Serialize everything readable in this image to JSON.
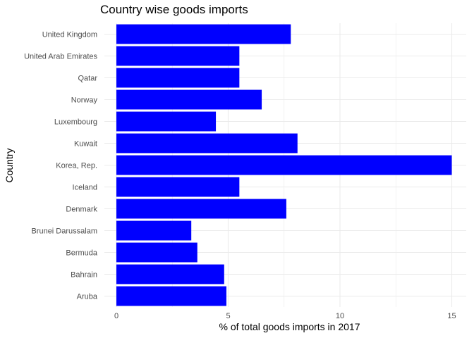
{
  "chart_data": {
    "type": "bar",
    "orientation": "horizontal",
    "title": "Country wise goods imports",
    "xlabel": "% of total goods imports in 2017",
    "ylabel": "Country",
    "categories": [
      "United Kingdom",
      "United Arab Emirates",
      "Qatar",
      "Norway",
      "Luxembourg",
      "Kuwait",
      "Korea, Rep.",
      "Iceland",
      "Denmark",
      "Brunei Darussalam",
      "Bermuda",
      "Bahrain",
      "Aruba"
    ],
    "values": [
      7.8,
      5.5,
      5.5,
      6.5,
      4.45,
      8.1,
      15.0,
      5.5,
      7.6,
      3.35,
      3.62,
      4.82,
      4.92
    ],
    "xlim": [
      0,
      15.8
    ],
    "xticks": [
      "0",
      "5",
      "10",
      "15"
    ],
    "grid": true,
    "bar_color": "#0000FF",
    "grid_color": "#EBEBEB"
  }
}
